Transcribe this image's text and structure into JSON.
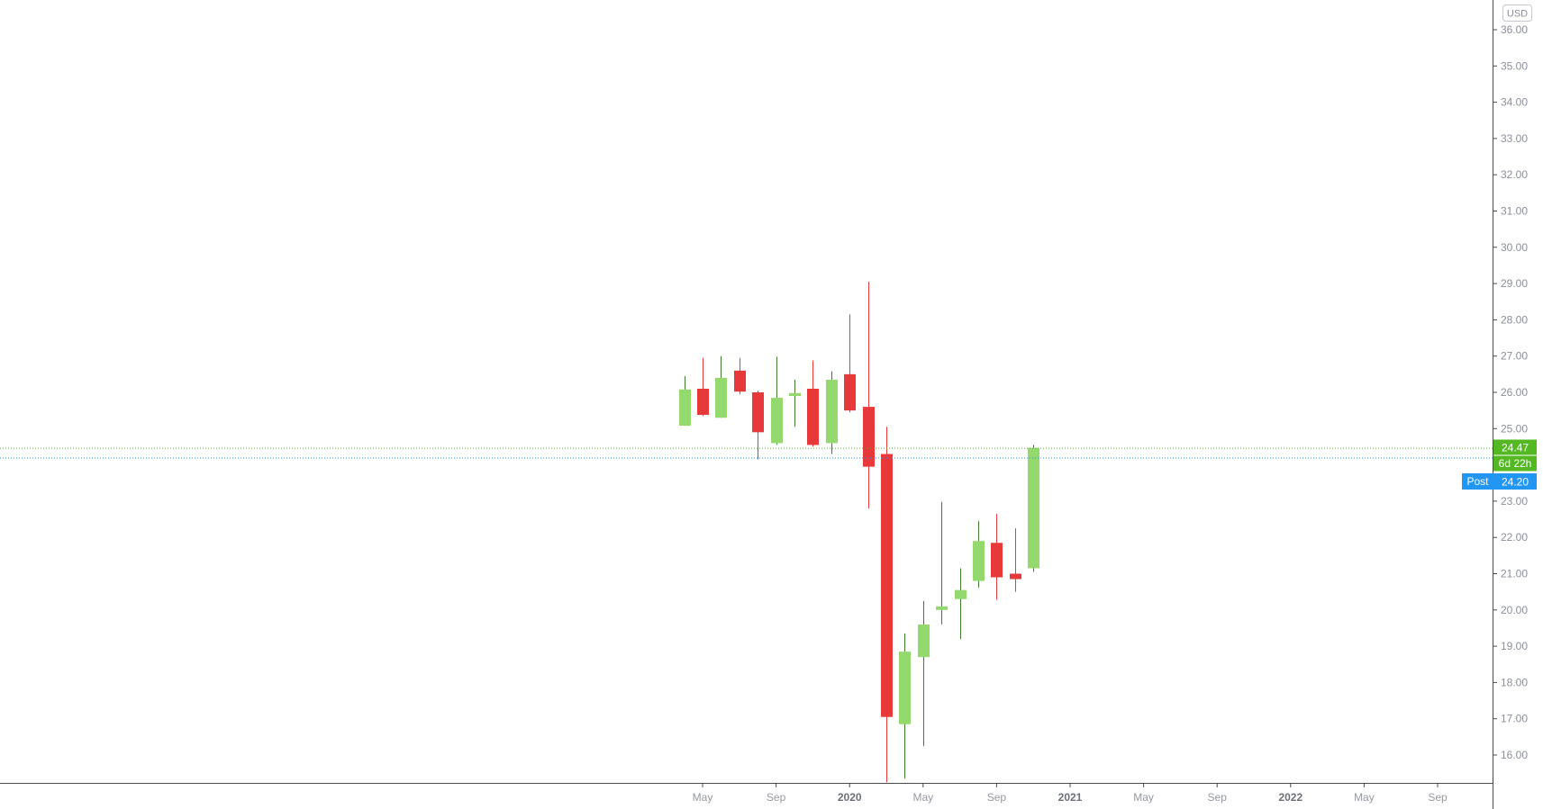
{
  "currency_label": "USD",
  "colors": {
    "up": "#93d96d",
    "up_wick": "#3f7a2c",
    "down": "#e8393a",
    "down_wick": "#e8393a",
    "last_price": "#53b822",
    "post": "#2196f3"
  },
  "badges": {
    "last_price": "24.47",
    "countdown": "6d 22h",
    "post_label": "Post",
    "post_price": "24.20"
  },
  "chart_data": {
    "type": "candlestick",
    "interval": "monthly",
    "currency": "USD",
    "ylim": [
      15.25,
      36.4
    ],
    "yticks": [
      "16.00",
      "17.00",
      "18.00",
      "19.00",
      "20.00",
      "21.00",
      "22.00",
      "23.00",
      "24.00",
      "25.00",
      "26.00",
      "27.00",
      "28.00",
      "29.00",
      "30.00",
      "31.00",
      "32.00",
      "33.00",
      "34.00",
      "35.00",
      "36.00"
    ],
    "xticks": [
      {
        "label": "May",
        "date": "2019-05",
        "bold": false
      },
      {
        "label": "Sep",
        "date": "2019-09",
        "bold": false
      },
      {
        "label": "2020",
        "date": "2020-01",
        "bold": true
      },
      {
        "label": "May",
        "date": "2020-05",
        "bold": false
      },
      {
        "label": "Sep",
        "date": "2020-09",
        "bold": false
      },
      {
        "label": "2021",
        "date": "2021-01",
        "bold": true
      },
      {
        "label": "May",
        "date": "2021-05",
        "bold": false
      },
      {
        "label": "Sep",
        "date": "2021-09",
        "bold": false
      },
      {
        "label": "2022",
        "date": "2022-01",
        "bold": true
      },
      {
        "label": "May",
        "date": "2022-05",
        "bold": false
      },
      {
        "label": "Sep",
        "date": "2022-09",
        "bold": false
      }
    ],
    "candles": [
      {
        "date": "2019-04",
        "open": 25.08,
        "high": 26.45,
        "low": 25.08,
        "close": 26.08
      },
      {
        "date": "2019-05",
        "open": 26.1,
        "high": 26.95,
        "low": 25.35,
        "close": 25.38
      },
      {
        "date": "2019-06",
        "open": 25.3,
        "high": 27.0,
        "low": 25.3,
        "close": 26.4
      },
      {
        "date": "2019-07",
        "open": 26.6,
        "high": 26.95,
        "low": 25.95,
        "close": 26.02
      },
      {
        "date": "2019-08",
        "open": 26.0,
        "high": 26.05,
        "low": 24.15,
        "close": 24.9
      },
      {
        "date": "2019-09",
        "open": 24.6,
        "high": 26.98,
        "low": 24.55,
        "close": 25.85
      },
      {
        "date": "2019-10",
        "open": 25.9,
        "high": 26.35,
        "low": 25.05,
        "close": 25.98
      },
      {
        "date": "2019-11",
        "open": 26.1,
        "high": 26.88,
        "low": 24.5,
        "close": 24.55
      },
      {
        "date": "2019-12",
        "open": 24.6,
        "high": 26.58,
        "low": 24.3,
        "close": 26.35
      },
      {
        "date": "2020-01",
        "open": 26.5,
        "high": 28.15,
        "low": 25.45,
        "close": 25.5
      },
      {
        "date": "2020-02",
        "open": 25.6,
        "high": 29.05,
        "low": 22.8,
        "close": 23.95
      },
      {
        "date": "2020-03",
        "open": 24.3,
        "high": 25.05,
        "low": 15.25,
        "close": 17.05
      },
      {
        "date": "2020-04",
        "open": 16.85,
        "high": 19.35,
        "low": 15.35,
        "close": 18.85
      },
      {
        "date": "2020-05",
        "open": 18.7,
        "high": 20.25,
        "low": 16.25,
        "close": 19.6
      },
      {
        "date": "2020-06",
        "open": 20.0,
        "high": 22.98,
        "low": 19.6,
        "close": 20.1
      },
      {
        "date": "2020-07",
        "open": 20.3,
        "high": 21.15,
        "low": 19.2,
        "close": 20.55
      },
      {
        "date": "2020-08",
        "open": 20.8,
        "high": 22.45,
        "low": 20.62,
        "close": 21.9
      },
      {
        "date": "2020-09",
        "open": 21.85,
        "high": 22.65,
        "low": 20.28,
        "close": 20.9
      },
      {
        "date": "2020-10",
        "open": 21.0,
        "high": 22.25,
        "low": 20.5,
        "close": 20.85
      },
      {
        "date": "2020-11",
        "open": 21.15,
        "high": 24.55,
        "low": 21.05,
        "close": 24.47
      }
    ],
    "last_price": 24.47,
    "post_market_price": 24.2
  }
}
